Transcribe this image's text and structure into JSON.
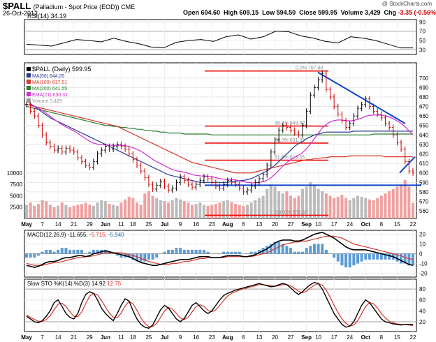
{
  "header": {
    "symbol": "$PALL",
    "description": "(Palladium - Spot Price (EOD))",
    "exchange": "CME",
    "date": "26-Oct-2012",
    "open": "604.60",
    "high": "609.15",
    "low": "594.50",
    "close": "599.95",
    "volume": "3,429",
    "chg": "-3.35 (-0.56%)",
    "credit": "@ StockCharts.com"
  },
  "chart_data": [
    {
      "type": "line",
      "panel": "rsi",
      "legend": "RSI(14) 34.19",
      "y_ticks": [
        30,
        50,
        70,
        90
      ],
      "ylim": [
        20,
        95
      ],
      "x": [
        0,
        4,
        8,
        12,
        16,
        20,
        24,
        28,
        32,
        36,
        40,
        44,
        48,
        52,
        56,
        60,
        64,
        68,
        72,
        76,
        80,
        84,
        88,
        92,
        96,
        100,
        104,
        108,
        112,
        116,
        120,
        124
      ],
      "values": [
        42,
        40,
        38,
        45,
        52,
        50,
        47,
        55,
        48,
        43,
        36,
        34,
        46,
        50,
        52,
        48,
        58,
        62,
        53,
        58,
        70,
        69,
        60,
        55,
        48,
        45,
        58,
        55,
        50,
        42,
        34,
        34
      ]
    },
    {
      "type": "candlestick",
      "panel": "price",
      "legend": [
        {
          "label": "$PALL (Daily) 599.95",
          "color": "#000000"
        },
        {
          "label": "MA(50) 644.20",
          "color": "#2b3a8f"
        },
        {
          "label": "MA(100) 617.51",
          "color": "#d9342b"
        },
        {
          "label": "MA(200) 641.55",
          "color": "#2e7d32"
        },
        {
          "label": "EMA(21) 630.31",
          "color": "#d42bd4"
        },
        {
          "label": "Volume 3,429",
          "color": "#999999"
        }
      ],
      "y_ticks": [
        560,
        570,
        580,
        590,
        600,
        610,
        620,
        630,
        640,
        650,
        660,
        670,
        680,
        690,
        700
      ],
      "ylim": [
        552,
        716
      ],
      "volume_ticks": [
        "2500",
        "5000",
        "7500",
        "10000"
      ],
      "x_labels": [
        "May",
        "7",
        "14",
        "21",
        "29",
        "Jun",
        "11",
        "18",
        "25",
        "Jul",
        "9",
        "16",
        "23",
        "Aug",
        "6",
        "13",
        "20",
        "27",
        "Sep",
        "10",
        "17",
        "24",
        "Oct",
        "8",
        "15",
        "22"
      ],
      "close": [
        672,
        665,
        660,
        650,
        640,
        632,
        628,
        624,
        626,
        622,
        626,
        624,
        622,
        616,
        612,
        608,
        606,
        612,
        620,
        624,
        628,
        625,
        628,
        630,
        628,
        625,
        620,
        614,
        608,
        602,
        595,
        588,
        583,
        587,
        591,
        586,
        582,
        584,
        590,
        596,
        592,
        588,
        585,
        588,
        592,
        596,
        594,
        590,
        586,
        584,
        588,
        592,
        590,
        588,
        584,
        580,
        582,
        586,
        590,
        594,
        598,
        608,
        622,
        635,
        645,
        650,
        648,
        645,
        642,
        640,
        650,
        665,
        682,
        690,
        698,
        705,
        688,
        680,
        670,
        662,
        655,
        648,
        652,
        660,
        668,
        672,
        678,
        670,
        665,
        662,
        658,
        652,
        648,
        640,
        632,
        625,
        612,
        602,
        600
      ],
      "ma50": [
        676,
        673,
        670,
        667,
        664,
        661,
        658,
        656,
        654,
        652,
        650,
        648,
        646,
        644,
        642,
        640,
        638,
        636,
        634,
        632,
        630,
        628,
        626,
        624,
        622,
        620,
        618,
        616,
        614,
        612,
        610,
        608,
        606,
        604,
        602,
        600,
        598,
        597,
        596,
        595,
        594,
        593,
        592,
        591,
        590,
        590,
        590,
        590,
        590,
        590,
        590,
        590,
        591,
        591,
        592,
        592,
        593,
        594,
        596,
        598,
        600,
        602,
        605,
        608,
        612,
        616,
        620,
        624,
        628,
        631,
        633,
        636,
        638,
        640,
        641,
        642,
        643,
        643,
        643,
        643,
        643,
        643,
        643,
        644,
        644,
        644,
        644,
        644,
        644,
        644,
        644,
        644,
        644,
        644,
        644,
        644,
        644,
        644,
        644
      ],
      "ma100": [
        672,
        671,
        670,
        669,
        668,
        667,
        666,
        665,
        664,
        663,
        662,
        661,
        660,
        659,
        658,
        657,
        656,
        655,
        654,
        653,
        652,
        651,
        650,
        649,
        647,
        645,
        643,
        641,
        639,
        637,
        635,
        633,
        631,
        629,
        627,
        625,
        623,
        621,
        619,
        617,
        615,
        613,
        611,
        610,
        609,
        608,
        607,
        606,
        605,
        604,
        603,
        602,
        601,
        600,
        600,
        600,
        600,
        600,
        601,
        602,
        603,
        604,
        605,
        606,
        607,
        608,
        609,
        610,
        611,
        612,
        613,
        614,
        614,
        615,
        615,
        616,
        616,
        617,
        617,
        617,
        617,
        617,
        618,
        618,
        618,
        618,
        618,
        618,
        618,
        618,
        618,
        617,
        617,
        617,
        617,
        617,
        617,
        617,
        617
      ],
      "ma200": [
        670,
        669,
        668,
        667,
        666,
        665,
        664,
        663,
        662,
        661,
        660,
        659,
        658,
        657,
        656,
        655,
        654,
        653,
        652,
        651,
        650,
        650,
        649,
        649,
        648,
        648,
        647,
        647,
        646,
        646,
        645,
        645,
        644,
        644,
        643,
        643,
        642,
        642,
        642,
        642,
        641,
        641,
        641,
        641,
        641,
        641,
        641,
        640,
        640,
        640,
        640,
        640,
        640,
        640,
        640,
        640,
        640,
        640,
        640,
        640,
        640,
        640,
        640,
        640,
        640,
        640,
        640,
        640,
        640,
        640,
        640,
        640,
        640,
        640,
        640,
        640,
        640,
        640,
        640,
        640,
        640,
        640,
        640,
        640,
        640,
        640,
        640,
        640,
        641,
        641,
        641,
        641,
        641,
        641,
        641,
        641,
        641,
        641,
        641
      ],
      "volume": [
        3000,
        3500,
        2800,
        3200,
        4000,
        3800,
        3000,
        2500,
        2800,
        3500,
        3000,
        2500,
        2800,
        3000,
        3200,
        3500,
        3000,
        2800,
        3500,
        4000,
        3800,
        3200,
        3000,
        2800,
        3500,
        4200,
        4800,
        4500,
        3500,
        3000,
        5500,
        6000,
        5000,
        4500,
        4000,
        3800,
        3500,
        4000,
        4500,
        4200,
        3800,
        3500,
        3000,
        3200,
        3500,
        3000,
        2800,
        3000,
        3200,
        3500,
        3800,
        4000,
        3600,
        3200,
        3000,
        2800,
        3000,
        3500,
        4000,
        4500,
        5000,
        6500,
        7500,
        7000,
        6000,
        5500,
        6000,
        5000,
        4500,
        5000,
        6500,
        7000,
        8000,
        7500,
        6500,
        6000,
        5500,
        5000,
        4500,
        4800,
        5200,
        4500,
        4000,
        4500,
        5000,
        4800,
        4500,
        4200,
        4000,
        4500,
        5000,
        5500,
        6000,
        6500,
        7000,
        7500,
        8500,
        7000,
        3429
      ],
      "horizontal_levels": [
        {
          "label": "0.0% 707.40",
          "value": 707.4
        },
        {
          "label": "38.2% 649.32",
          "value": 649.32
        },
        {
          "label": "50.0% 631.39",
          "value": 631.39
        },
        {
          "label": "61.8% 613.45",
          "value": 613.45
        },
        {
          "label": "100.0% 555.37",
          "value": 555.37
        }
      ],
      "support_level": 587
    },
    {
      "type": "bar",
      "panel": "macd",
      "legend": [
        {
          "label": "MACD(12,26,9)",
          "value": "-11.655",
          "color": "#000000"
        },
        {
          "label": "",
          "value": "-5.715",
          "color": "#d9342b"
        },
        {
          "label": "",
          "value": "-5.940",
          "color": "#2a6fb0"
        }
      ],
      "y_ticks": [
        20,
        10,
        0,
        -10,
        -20
      ],
      "ylim": [
        -24,
        24
      ],
      "macd": [
        -12,
        -13,
        -14,
        -13,
        -11,
        -9,
        -8,
        -8,
        -7,
        -5,
        -4,
        -4,
        -3,
        -2,
        -2,
        -3,
        -2,
        0,
        1,
        2,
        3,
        2,
        1,
        0,
        -1,
        -2,
        -3,
        -5,
        -7,
        -9,
        -10,
        -11,
        -12,
        -12,
        -11,
        -10,
        -9,
        -8,
        -7,
        -6,
        -6,
        -6,
        -5,
        -4,
        -3,
        -3,
        -3,
        -4,
        -4,
        -4,
        -3,
        -2,
        -2,
        -2,
        -2,
        -3,
        -3,
        -2,
        -1,
        1,
        3,
        5,
        8,
        11,
        13,
        14,
        14,
        14,
        13,
        13,
        14,
        16,
        18,
        20,
        21,
        22,
        20,
        18,
        16,
        13,
        10,
        7,
        5,
        4,
        4,
        4,
        4,
        3,
        2,
        1,
        0,
        -1,
        -2,
        -3,
        -5,
        -7,
        -9,
        -11,
        -12
      ],
      "signal": [
        -10,
        -11,
        -12,
        -12,
        -12,
        -11,
        -10,
        -9,
        -9,
        -8,
        -7,
        -6,
        -5,
        -4,
        -4,
        -3,
        -3,
        -2,
        -1,
        0,
        1,
        1,
        1,
        1,
        1,
        0,
        -1,
        -2,
        -3,
        -5,
        -6,
        -8,
        -9,
        -10,
        -11,
        -11,
        -11,
        -10,
        -10,
        -9,
        -8,
        -8,
        -7,
        -6,
        -5,
        -5,
        -4,
        -4,
        -4,
        -4,
        -4,
        -3,
        -3,
        -3,
        -3,
        -3,
        -3,
        -3,
        -2,
        -1,
        0,
        1,
        3,
        5,
        7,
        9,
        10,
        11,
        12,
        12,
        13,
        13,
        14,
        15,
        16,
        17,
        18,
        18,
        18,
        17,
        16,
        14,
        12,
        10,
        9,
        8,
        7,
        6,
        5,
        4,
        3,
        2,
        1,
        0,
        -1,
        -2,
        -4,
        -5,
        -6
      ]
    },
    {
      "type": "line",
      "panel": "stochastic",
      "legend": [
        {
          "label": "Slow STO %K(14) %D(3)",
          "value": "14.92",
          "color": "#000000"
        },
        {
          "label": "",
          "value": "12.75",
          "color": "#d9342b"
        }
      ],
      "y_ticks": [
        20,
        40,
        60,
        80
      ],
      "ylim": [
        2,
        98
      ],
      "k": [
        30,
        25,
        20,
        18,
        22,
        30,
        40,
        55,
        60,
        48,
        35,
        28,
        25,
        35,
        55,
        70,
        75,
        72,
        60,
        45,
        35,
        28,
        22,
        35,
        50,
        62,
        58,
        40,
        25,
        15,
        10,
        8,
        14,
        28,
        42,
        50,
        45,
        35,
        25,
        20,
        26,
        38,
        50,
        55,
        48,
        40,
        35,
        40,
        50,
        60,
        68,
        72,
        75,
        78,
        80,
        82,
        84,
        86,
        88,
        90,
        88,
        86,
        84,
        85,
        88,
        90,
        88,
        82,
        75,
        70,
        75,
        82,
        88,
        92,
        90,
        80,
        65,
        50,
        35,
        25,
        15,
        10,
        12,
        20,
        35,
        50,
        60,
        55,
        45,
        35,
        25,
        20,
        18,
        16,
        15,
        14,
        15,
        15,
        15
      ],
      "d": [
        32,
        28,
        24,
        21,
        20,
        24,
        31,
        42,
        52,
        54,
        48,
        38,
        30,
        29,
        38,
        53,
        67,
        72,
        69,
        59,
        47,
        36,
        28,
        27,
        36,
        49,
        57,
        53,
        41,
        27,
        17,
        11,
        11,
        17,
        28,
        40,
        46,
        43,
        35,
        27,
        24,
        28,
        38,
        48,
        51,
        48,
        41,
        38,
        42,
        50,
        59,
        67,
        72,
        75,
        78,
        80,
        82,
        84,
        86,
        88,
        88,
        87,
        86,
        85,
        86,
        88,
        88,
        86,
        81,
        76,
        73,
        76,
        82,
        87,
        90,
        87,
        78,
        65,
        50,
        37,
        25,
        17,
        12,
        14,
        22,
        35,
        48,
        55,
        53,
        45,
        35,
        27,
        21,
        18,
        16,
        15,
        15,
        14,
        13
      ]
    }
  ]
}
